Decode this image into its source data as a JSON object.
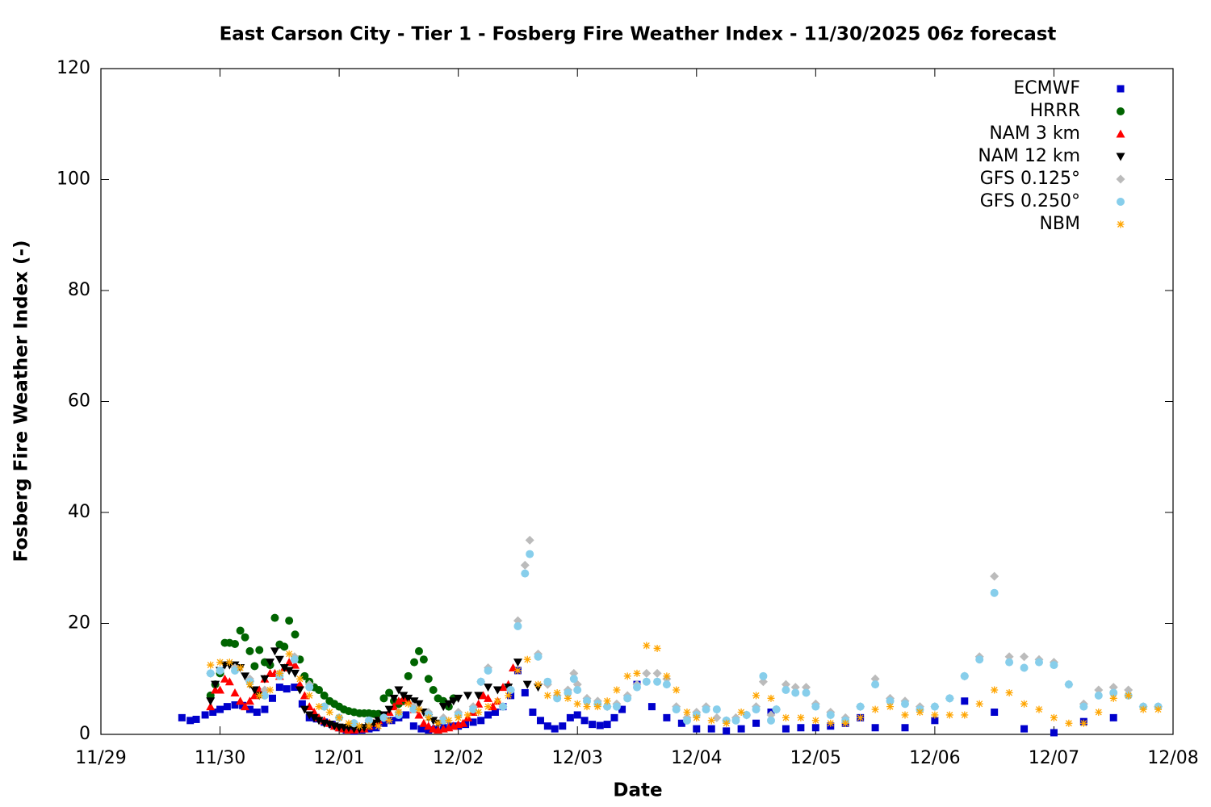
{
  "chart_data": {
    "type": "scatter",
    "title": "East Carson City - Tier 1 - Fosberg Fire Weather Index - 11/30/2025 06z forecast",
    "x_label": "Date",
    "y_label": "Fosberg Fire Weather Index (-)",
    "xlim": [
      0,
      9
    ],
    "xticks": [
      {
        "value": 0,
        "label": "11/29"
      },
      {
        "value": 1,
        "label": "11/30"
      },
      {
        "value": 2,
        "label": "12/01"
      },
      {
        "value": 3,
        "label": "12/02"
      },
      {
        "value": 4,
        "label": "12/03"
      },
      {
        "value": 5,
        "label": "12/04"
      },
      {
        "value": 6,
        "label": "12/05"
      },
      {
        "value": 7,
        "label": "12/06"
      },
      {
        "value": 8,
        "label": "12/07"
      },
      {
        "value": 9,
        "label": "12/08"
      }
    ],
    "ylim": [
      0,
      120
    ],
    "yticks": [
      0,
      20,
      40,
      60,
      80,
      100,
      120
    ],
    "grid": false,
    "legend": "upper right",
    "series": [
      {
        "name": "ECMWF",
        "color": "#0000cc",
        "marker": "square",
        "x": [
          0.68,
          0.75,
          0.8,
          0.875,
          0.94,
          1.0,
          1.06,
          1.125,
          1.19,
          1.25,
          1.31,
          1.375,
          1.44,
          1.5,
          1.56,
          1.625,
          1.69,
          1.75,
          1.81,
          1.875,
          1.94,
          2.0,
          2.06,
          2.125,
          2.19,
          2.25,
          2.31,
          2.375,
          2.44,
          2.5,
          2.56,
          2.625,
          2.69,
          2.75,
          2.81,
          2.875,
          2.94,
          3.0,
          3.06,
          3.125,
          3.19,
          3.25,
          3.31,
          3.375,
          3.44,
          3.5,
          3.56,
          3.625,
          3.69,
          3.75,
          3.81,
          3.875,
          3.94,
          4.0,
          4.06,
          4.125,
          4.19,
          4.25,
          4.31,
          4.375,
          4.5,
          4.625,
          4.75,
          4.875,
          5.0,
          5.125,
          5.25,
          5.375,
          5.5,
          5.625,
          5.75,
          5.875,
          6.0,
          6.125,
          6.25,
          6.375,
          6.5,
          6.75,
          7.0,
          7.25,
          7.5,
          7.75,
          8.0,
          8.25,
          8.5
        ],
        "values": [
          3,
          2.5,
          2.7,
          3.5,
          4,
          4.5,
          5,
          5.3,
          5.2,
          4.5,
          4,
          4.5,
          6.5,
          8.5,
          8.2,
          8.5,
          5.5,
          3,
          2.8,
          2.2,
          1.8,
          1.2,
          0.8,
          0.6,
          0.8,
          1,
          1.2,
          2,
          2.5,
          3,
          3.5,
          1.5,
          1,
          0.8,
          1,
          1.2,
          1.5,
          1.5,
          1.8,
          2.2,
          2.5,
          3.5,
          4,
          5,
          7,
          11.5,
          7.5,
          4,
          2.5,
          1.5,
          1,
          1.5,
          3,
          3.5,
          2.5,
          1.8,
          1.6,
          1.8,
          3,
          4.5,
          9,
          5,
          3,
          2,
          1,
          1,
          0.6,
          1,
          2,
          4,
          1,
          1.2,
          1.2,
          1.5,
          2,
          3,
          1.2,
          1.2,
          2.5,
          6,
          4,
          1,
          0.3,
          2.3,
          3
        ]
      },
      {
        "name": "HRRR",
        "color": "#006400",
        "marker": "circle",
        "x": [
          0.92,
          0.96,
          1.0,
          1.04,
          1.08,
          1.125,
          1.17,
          1.21,
          1.25,
          1.29,
          1.33,
          1.375,
          1.42,
          1.46,
          1.5,
          1.54,
          1.58,
          1.63,
          1.67,
          1.71,
          1.75,
          1.79,
          1.83,
          1.875,
          1.92,
          1.96,
          2.0,
          2.04,
          2.08,
          2.125,
          2.17,
          2.21,
          2.25,
          2.29,
          2.33,
          2.375,
          2.42,
          2.46,
          2.5,
          2.54,
          2.58,
          2.63,
          2.67,
          2.71,
          2.75,
          2.79,
          2.83,
          2.875,
          2.92,
          2.96
        ],
        "values": [
          7,
          9,
          11,
          16.5,
          16.5,
          16.3,
          18.7,
          17.5,
          15,
          12.3,
          15.2,
          13,
          12.5,
          21,
          16.2,
          15.8,
          20.5,
          18,
          13.5,
          10.5,
          9.5,
          8.5,
          8,
          7,
          6,
          5.5,
          5,
          4.5,
          4.2,
          4,
          3.8,
          3.8,
          3.8,
          3.7,
          3.7,
          6.5,
          7.5,
          6,
          5.5,
          6,
          10.5,
          13,
          15,
          13.5,
          10,
          8,
          6.5,
          6,
          5,
          6.5
        ]
      },
      {
        "name": "NAM 3 km",
        "color": "#ff0000",
        "marker": "triangle-up",
        "x": [
          0.92,
          0.96,
          1.0,
          1.04,
          1.08,
          1.125,
          1.17,
          1.21,
          1.25,
          1.29,
          1.33,
          1.375,
          1.42,
          1.46,
          1.5,
          1.54,
          1.58,
          1.63,
          1.67,
          1.71,
          1.75,
          1.79,
          1.83,
          1.875,
          1.92,
          1.96,
          2.0,
          2.04,
          2.08,
          2.125,
          2.17,
          2.21,
          2.25,
          2.29,
          2.33,
          2.375,
          2.42,
          2.46,
          2.5,
          2.54,
          2.58,
          2.63,
          2.67,
          2.71,
          2.75,
          2.79,
          2.83,
          2.875,
          2.92,
          2.96,
          3.0,
          3.04,
          3.08,
          3.125,
          3.17,
          3.21,
          3.25,
          3.29,
          3.33,
          3.375,
          3.42,
          3.46
        ],
        "values": [
          5,
          8,
          8,
          10,
          9.5,
          7.5,
          6,
          5,
          6,
          7,
          8,
          10,
          11,
          11,
          10.5,
          12,
          13,
          12.5,
          9,
          7,
          5,
          4,
          3,
          2.5,
          2,
          1.5,
          1.2,
          1,
          0.8,
          0.8,
          1,
          1,
          1.5,
          2,
          2.5,
          3,
          4,
          5,
          6,
          6.5,
          6,
          4.5,
          3.5,
          2,
          1.5,
          1,
          0.8,
          1,
          1.2,
          1.5,
          1.8,
          2,
          3,
          4,
          5.5,
          7,
          6.5,
          5,
          6,
          8.5,
          9,
          12
        ]
      },
      {
        "name": "NAM 12 km",
        "color": "#000000",
        "marker": "triangle-down",
        "x": [
          0.92,
          0.96,
          1.0,
          1.04,
          1.08,
          1.125,
          1.17,
          1.21,
          1.25,
          1.29,
          1.33,
          1.375,
          1.42,
          1.46,
          1.5,
          1.54,
          1.58,
          1.63,
          1.67,
          1.71,
          1.75,
          1.79,
          1.83,
          1.875,
          1.92,
          1.96,
          2.0,
          2.04,
          2.08,
          2.125,
          2.17,
          2.21,
          2.25,
          2.29,
          2.33,
          2.375,
          2.42,
          2.46,
          2.5,
          2.54,
          2.58,
          2.63,
          2.67,
          2.71,
          2.75,
          2.79,
          2.83,
          2.875,
          2.92,
          2.96,
          3.0,
          3.08,
          3.17,
          3.25,
          3.33,
          3.42,
          3.5,
          3.58,
          3.67
        ],
        "values": [
          6,
          9,
          11.5,
          12.5,
          12.5,
          12.5,
          12,
          10.5,
          9,
          8,
          7,
          10,
          13,
          15,
          13.5,
          12,
          11.5,
          11,
          8,
          4.5,
          3.5,
          3,
          2.5,
          2,
          1.8,
          1.5,
          1.3,
          1.2,
          1.2,
          1,
          1,
          1.2,
          1.5,
          2,
          2.5,
          3.5,
          4.5,
          6.5,
          8,
          7,
          6.5,
          6,
          5.5,
          4,
          3,
          2.5,
          2,
          5,
          5.5,
          6,
          6.5,
          7,
          7,
          8.5,
          8,
          8.5,
          13,
          9,
          8.5
        ]
      },
      {
        "name": "GFS 0.125°",
        "color": "#bbbbbb",
        "marker": "diamond",
        "x": [
          0.92,
          1.0,
          1.125,
          1.25,
          1.375,
          1.5,
          1.625,
          1.75,
          1.875,
          2.0,
          2.125,
          2.25,
          2.375,
          2.5,
          2.625,
          2.75,
          2.875,
          3.0,
          3.125,
          3.19,
          3.25,
          3.375,
          3.44,
          3.5,
          3.56,
          3.6,
          3.67,
          3.75,
          3.83,
          3.92,
          3.97,
          4.0,
          4.08,
          4.17,
          4.25,
          4.33,
          4.42,
          4.5,
          4.58,
          4.67,
          4.75,
          4.83,
          4.92,
          5.0,
          5.08,
          5.17,
          5.25,
          5.33,
          5.42,
          5.5,
          5.56,
          5.625,
          5.67,
          5.75,
          5.83,
          5.92,
          6.0,
          6.125,
          6.25,
          6.375,
          6.5,
          6.625,
          6.75,
          6.875,
          7.0,
          7.125,
          7.25,
          7.375,
          7.5,
          7.625,
          7.75,
          7.875,
          8.0,
          8.125,
          8.25,
          8.375,
          8.5,
          8.625,
          8.75,
          8.875
        ],
        "values": [
          11,
          11.5,
          12,
          10,
          8,
          11,
          14,
          9,
          5,
          3,
          2,
          2.5,
          3,
          4,
          5,
          4,
          3,
          4,
          5,
          9.5,
          12,
          5,
          8,
          20.5,
          30.5,
          35,
          14.5,
          9,
          7,
          8,
          11,
          9,
          6.5,
          6,
          5,
          5.5,
          7,
          9,
          11,
          11,
          10,
          5,
          3,
          4,
          5,
          3,
          2.5,
          3,
          3.5,
          5,
          9.5,
          3.5,
          4.5,
          9,
          8.5,
          8.5,
          5.5,
          4,
          3,
          5,
          10,
          6.5,
          6,
          5,
          5,
          6.5,
          10.5,
          14,
          28.5,
          14,
          14,
          13.5,
          13,
          9,
          5.5,
          8,
          8.5,
          8,
          5,
          5
        ]
      },
      {
        "name": "GFS 0.250°",
        "color": "#87ceeb",
        "marker": "circle",
        "x": [
          0.92,
          1.0,
          1.125,
          1.25,
          1.375,
          1.5,
          1.625,
          1.75,
          1.875,
          2.0,
          2.125,
          2.25,
          2.375,
          2.5,
          2.625,
          2.75,
          2.875,
          3.0,
          3.125,
          3.19,
          3.25,
          3.375,
          3.44,
          3.5,
          3.56,
          3.6,
          3.67,
          3.75,
          3.83,
          3.92,
          3.97,
          4.0,
          4.08,
          4.17,
          4.25,
          4.33,
          4.42,
          4.5,
          4.58,
          4.67,
          4.75,
          4.83,
          4.92,
          5.0,
          5.08,
          5.17,
          5.25,
          5.33,
          5.42,
          5.5,
          5.56,
          5.625,
          5.67,
          5.75,
          5.83,
          5.92,
          6.0,
          6.125,
          6.25,
          6.375,
          6.5,
          6.625,
          6.75,
          6.875,
          7.0,
          7.125,
          7.25,
          7.375,
          7.5,
          7.625,
          7.75,
          7.875,
          8.0,
          8.125,
          8.25,
          8.375,
          8.5,
          8.625,
          8.75,
          8.875
        ],
        "values": [
          11,
          11.5,
          11.5,
          9.5,
          7,
          10.5,
          13.5,
          8.5,
          5,
          3,
          2,
          2.5,
          3,
          3.5,
          4.5,
          3.5,
          2.5,
          3.5,
          4.5,
          9.5,
          11.5,
          5,
          8,
          19.5,
          29,
          32.5,
          14,
          9.5,
          6.5,
          7.5,
          10,
          8,
          6,
          5.5,
          5,
          5,
          6.5,
          8.5,
          9.5,
          9.5,
          9,
          4.5,
          2.5,
          3.5,
          4.5,
          4.5,
          2.5,
          2.5,
          3.5,
          4.5,
          10.5,
          2.5,
          4.5,
          8,
          7.5,
          7.5,
          5,
          3.5,
          2.5,
          5,
          9,
          6,
          5.5,
          4.5,
          5,
          6.5,
          10.5,
          13.5,
          25.5,
          13,
          12,
          13,
          12.5,
          9,
          5,
          7,
          7.5,
          7,
          5,
          5
        ]
      },
      {
        "name": "NBM",
        "color": "#ffa500",
        "marker": "star",
        "x": [
          0.92,
          1.0,
          1.08,
          1.17,
          1.25,
          1.33,
          1.42,
          1.5,
          1.58,
          1.67,
          1.75,
          1.83,
          1.92,
          2.0,
          2.08,
          2.17,
          2.25,
          2.33,
          2.42,
          2.5,
          2.58,
          2.67,
          2.75,
          2.83,
          2.92,
          3.0,
          3.08,
          3.17,
          3.25,
          3.33,
          3.42,
          3.5,
          3.58,
          3.67,
          3.75,
          3.83,
          3.92,
          4.0,
          4.08,
          4.17,
          4.25,
          4.33,
          4.42,
          4.5,
          4.58,
          4.67,
          4.75,
          4.83,
          4.92,
          5.0,
          5.125,
          5.25,
          5.375,
          5.5,
          5.625,
          5.75,
          5.875,
          6.0,
          6.125,
          6.25,
          6.375,
          6.5,
          6.625,
          6.75,
          6.875,
          7.0,
          7.125,
          7.25,
          7.375,
          7.5,
          7.625,
          7.75,
          7.875,
          8.0,
          8.125,
          8.25,
          8.375,
          8.5,
          8.625,
          8.75,
          8.875
        ],
        "values": [
          12.5,
          13,
          13,
          12,
          9,
          7,
          8,
          11,
          14.5,
          10,
          7,
          5,
          4,
          3,
          2,
          1.5,
          1.5,
          1.5,
          2.5,
          4,
          5.5,
          4.5,
          3,
          2,
          2.5,
          3,
          3.5,
          4,
          5,
          6,
          7,
          11.5,
          13.5,
          9,
          7,
          7.5,
          6.5,
          5.5,
          5,
          5,
          6,
          8,
          10.5,
          11,
          16,
          15.5,
          10.5,
          8,
          4,
          3,
          2.5,
          2,
          4,
          7,
          6.5,
          3,
          3,
          2.5,
          2,
          2,
          3,
          4.5,
          5,
          3.5,
          4,
          3.5,
          3.5,
          3.5,
          5.5,
          8,
          7.5,
          5.5,
          4.5,
          3,
          2,
          2,
          4,
          6.5,
          7,
          4.5,
          4.5
        ]
      }
    ]
  }
}
